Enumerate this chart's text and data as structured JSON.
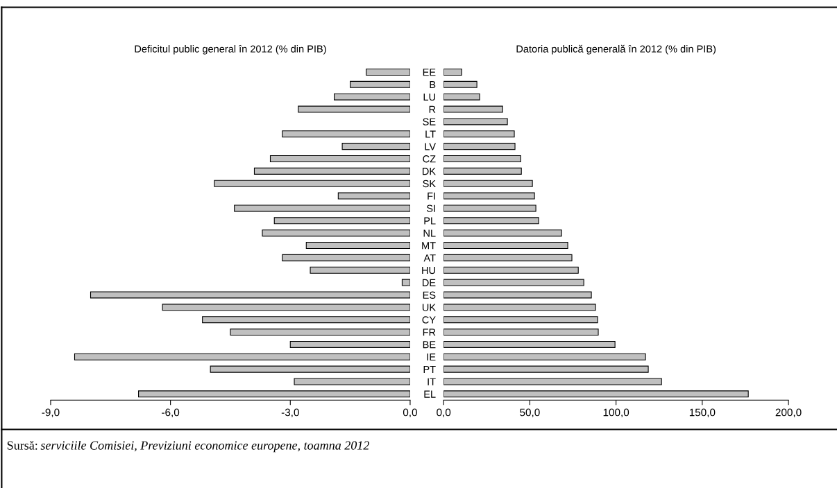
{
  "chart_data": [
    {
      "type": "bar",
      "orientation": "horizontal",
      "title": "Deficitul public general în 2012 (% din PIB)",
      "categories": [
        null,
        null,
        null,
        null,
        null,
        null,
        null,
        null,
        null,
        null,
        null,
        null,
        null,
        null,
        null,
        null,
        null,
        null,
        null,
        null,
        null,
        null,
        null,
        null,
        null,
        null,
        null
      ],
      "values": [
        -1.1,
        -1.5,
        -1.9,
        -2.8,
        null,
        -3.2,
        -1.7,
        -3.5,
        -3.9,
        -4.9,
        -1.8,
        -4.4,
        -3.4,
        -3.7,
        -2.6,
        -3.2,
        -2.5,
        -0.2,
        -8.0,
        -6.2,
        -5.2,
        -4.5,
        -3.0,
        -8.4,
        -5.0,
        -2.9,
        -6.8
      ],
      "color": "#c0c0c0",
      "xlim": [
        -9,
        0
      ],
      "xticks": [
        {
          "value": -9,
          "label": "-9,0"
        },
        {
          "value": -6,
          "label": "-6,0"
        },
        {
          "value": -3,
          "label": "-3,0"
        },
        {
          "value": 0,
          "label": "0,0"
        }
      ],
      "tick_labels": "x",
      "grid": false,
      "annotations": [
        "Sursă: serviciile Comisiei, Previziuni economice europene, toamna 2012"
      ]
    },
    {
      "type": "bar",
      "orientation": "horizontal",
      "title": "Datoria publică generală în 2012 (% din PIB)",
      "categories": [
        "EE",
        "B",
        "LU",
        "R",
        "SE",
        "LT",
        "LV",
        "CZ",
        "DK",
        "SK",
        "FI",
        "SI",
        "PL",
        "NL",
        "MT",
        "AT",
        "HU",
        "DE",
        "ES",
        "UK",
        "CY",
        "FR",
        "BE",
        "IE",
        "PT",
        "IT",
        "EL"
      ],
      "values": [
        10.5,
        19.3,
        20.9,
        34.2,
        37,
        41,
        41.4,
        44.7,
        45.1,
        51.5,
        52.7,
        53.5,
        55.1,
        68.4,
        72,
        74.4,
        78.1,
        81.3,
        85.7,
        88.1,
        89.3,
        89.7,
        99.4,
        117.1,
        118.7,
        126.4,
        176.7
      ],
      "color": "#c0c0c0",
      "xlim": [
        0,
        200
      ],
      "xticks": [
        {
          "value": 0,
          "label": "0,0"
        },
        {
          "value": 50,
          "label": "50,0"
        },
        {
          "value": 100,
          "label": "100,0"
        },
        {
          "value": 150,
          "label": "150,0"
        },
        {
          "value": 200,
          "label": "200,0"
        }
      ],
      "grid": false
    }
  ]
}
